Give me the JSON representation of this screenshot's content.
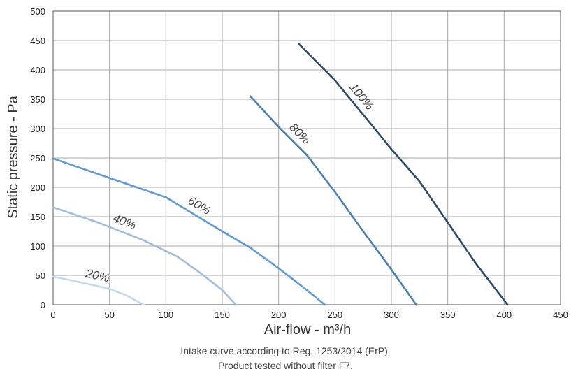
{
  "chart_data": {
    "type": "line",
    "xlabel": "Air-flow - m³/h",
    "ylabel": "Static pressure - Pa",
    "xlim": [
      0,
      450
    ],
    "ylim": [
      0,
      500
    ],
    "x_ticks": [
      "0",
      "50",
      "100",
      "150",
      "200",
      "250",
      "300",
      "350",
      "400",
      "450"
    ],
    "y_ticks": [
      "0",
      "50",
      "100",
      "150",
      "200",
      "250",
      "300",
      "350",
      "400",
      "450",
      "500"
    ],
    "grid": true,
    "series": [
      {
        "name": "20%",
        "color": "#c5d9ee",
        "points": [
          [
            0,
            48
          ],
          [
            25,
            38
          ],
          [
            50,
            27
          ],
          [
            65,
            16
          ],
          [
            80,
            0
          ]
        ]
      },
      {
        "name": "40%",
        "color": "#a0bddf",
        "points": [
          [
            0,
            166
          ],
          [
            40,
            140
          ],
          [
            80,
            110
          ],
          [
            110,
            82
          ],
          [
            130,
            55
          ],
          [
            150,
            25
          ],
          [
            162,
            0
          ]
        ]
      },
      {
        "name": "60%",
        "color": "#5c9ad8",
        "points": [
          [
            0,
            249
          ],
          [
            50,
            216
          ],
          [
            100,
            183
          ],
          [
            150,
            125
          ],
          [
            175,
            97
          ],
          [
            200,
            62
          ],
          [
            225,
            25
          ],
          [
            241,
            0
          ]
        ]
      },
      {
        "name": "80%",
        "color": "#4a7fb8",
        "points": [
          [
            175,
            355
          ],
          [
            200,
            303
          ],
          [
            225,
            255
          ],
          [
            250,
            192
          ],
          [
            275,
            125
          ],
          [
            300,
            60
          ],
          [
            322,
            0
          ]
        ]
      },
      {
        "name": "100%",
        "color": "#2a4a6c",
        "points": [
          [
            218,
            444
          ],
          [
            250,
            382
          ],
          [
            283,
            305
          ],
          [
            300,
            265
          ],
          [
            325,
            210
          ],
          [
            350,
            140
          ],
          [
            375,
            70
          ],
          [
            403,
            0
          ]
        ]
      }
    ]
  },
  "caption_line1": "Intake curve according to Reg. 1253/2014 (ErP).",
  "caption_line2": "Product tested without filter F7."
}
